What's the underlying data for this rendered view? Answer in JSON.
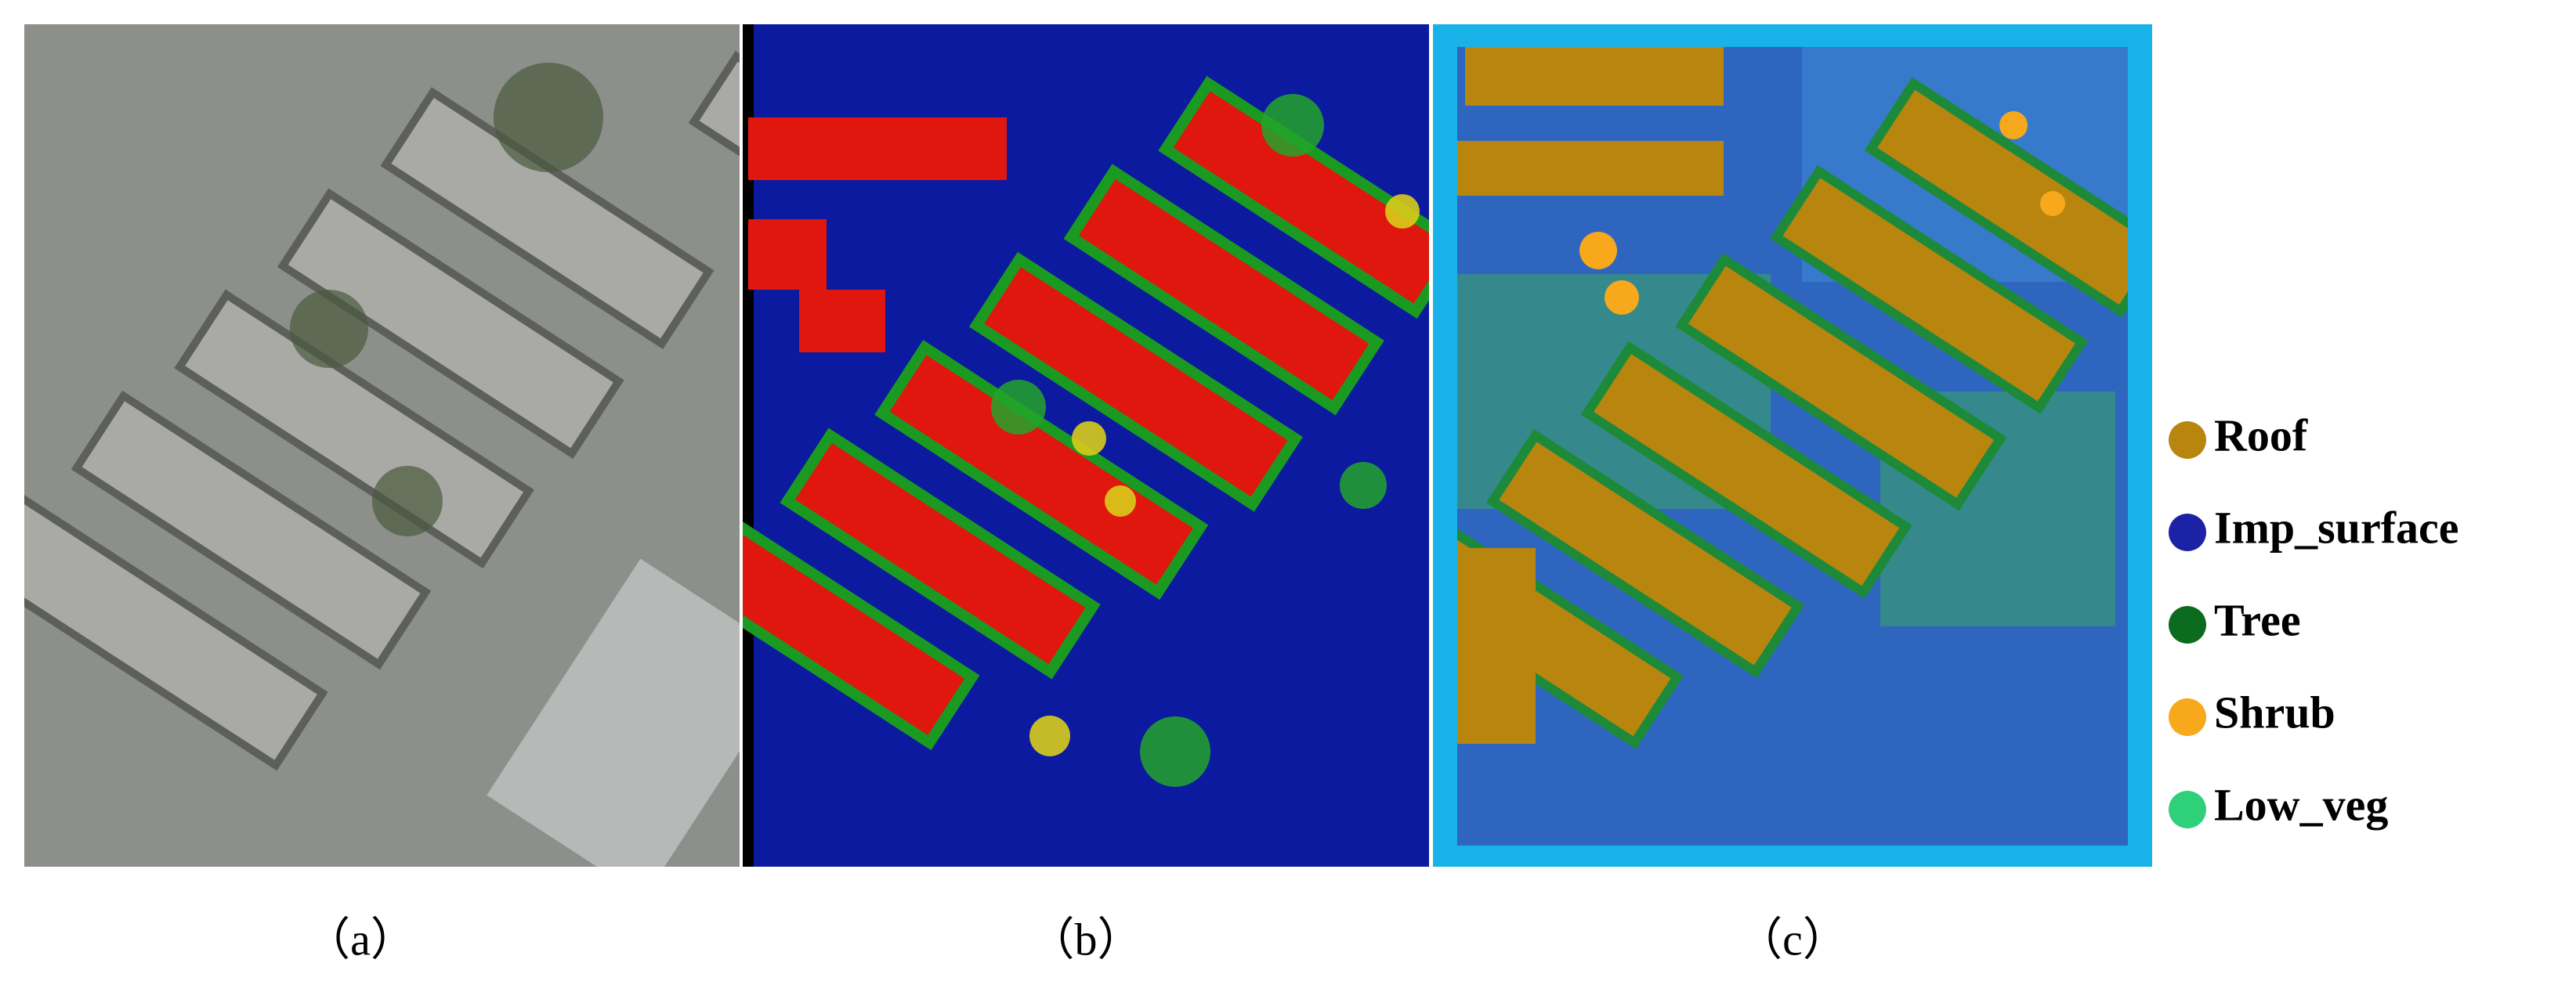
{
  "panels": [
    {
      "label": "（a）"
    },
    {
      "label": "（b）"
    },
    {
      "label": "（c）"
    }
  ],
  "legend": {
    "items": [
      {
        "name": "Roof",
        "color": "#b8860f"
      },
      {
        "name": "Imp_surface",
        "color": "#1c22a6"
      },
      {
        "name": "Tree",
        "color": "#0b6b1e"
      },
      {
        "name": "Shrub",
        "color": "#f7a81b"
      },
      {
        "name": "Low_veg",
        "color": "#2fd07a"
      }
    ]
  }
}
